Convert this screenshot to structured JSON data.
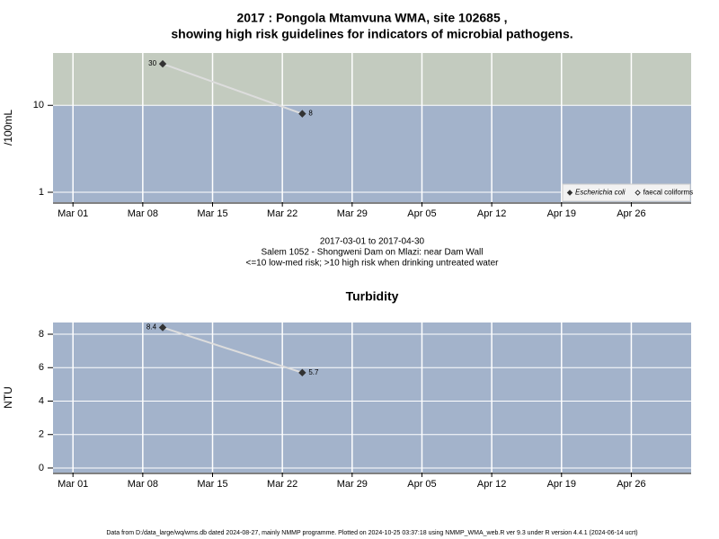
{
  "chart_data": [
    {
      "type": "line",
      "title": "2017 : Pongola Mtamvuna WMA, site 102685 ,",
      "subtitle": "showing high risk guidelines for indicators of microbial pathogens.",
      "y_label": "/100mL",
      "log_scale": true,
      "guideline": 10,
      "above_color": "#c3cbbf",
      "below_color": "#a3b3cb",
      "x": [
        "2017-03-10",
        "2017-03-24"
      ],
      "series": [
        {
          "name": "Escherichia coli",
          "color": "#333333",
          "marker": "filled",
          "values": [
            30,
            8
          ]
        },
        {
          "name": "faecal coliforms",
          "color": "#333333",
          "marker": "open",
          "values": [
            null,
            null
          ]
        }
      ],
      "line_color": "#dddddd",
      "xlim": [
        "2017-02-27",
        "2017-05-02"
      ],
      "xticks": [
        {
          "value": "2017-03-01",
          "label": "Mar 01"
        },
        {
          "value": "2017-03-08",
          "label": "Mar 08"
        },
        {
          "value": "2017-03-15",
          "label": "Mar 15"
        },
        {
          "value": "2017-03-22",
          "label": "Mar 22"
        },
        {
          "value": "2017-03-29",
          "label": "Mar 29"
        },
        {
          "value": "2017-04-05",
          "label": "Apr 05"
        },
        {
          "value": "2017-04-12",
          "label": "Apr 12"
        },
        {
          "value": "2017-04-19",
          "label": "Apr 19"
        },
        {
          "value": "2017-04-26",
          "label": "Apr 26"
        }
      ],
      "ylim": [
        0.77,
        40
      ],
      "yticks": [
        1,
        10
      ],
      "grid": true,
      "legend": "bottom-right",
      "annotations": [
        "2017-03-01 to 2017-04-30",
        "Salem 1052 - Shongweni Dam on Mlazi: near Dam Wall",
        "<=10 low-med risk; >10 high risk when drinking untreated water"
      ]
    },
    {
      "type": "line",
      "title": "Turbidity",
      "y_label": "NTU",
      "log_scale": false,
      "below_color": "#a3b3cb",
      "x": [
        "2017-03-10",
        "2017-03-24"
      ],
      "series": [
        {
          "color": "#333333",
          "marker": "filled",
          "values": [
            8.4,
            5.7
          ]
        }
      ],
      "line_color": "#dddddd",
      "xlim": [
        "2017-02-27",
        "2017-05-02"
      ],
      "xticks": [
        {
          "value": "2017-03-01",
          "label": "Mar 01"
        },
        {
          "value": "2017-03-08",
          "label": "Mar 08"
        },
        {
          "value": "2017-03-15",
          "label": "Mar 15"
        },
        {
          "value": "2017-03-22",
          "label": "Mar 22"
        },
        {
          "value": "2017-03-29",
          "label": "Mar 29"
        },
        {
          "value": "2017-04-05",
          "label": "Apr 05"
        },
        {
          "value": "2017-04-12",
          "label": "Apr 12"
        },
        {
          "value": "2017-04-19",
          "label": "Apr 19"
        },
        {
          "value": "2017-04-26",
          "label": "Apr 26"
        }
      ],
      "ylim": [
        -0.27,
        8.7
      ],
      "yticks": [
        0,
        2,
        4,
        6,
        8
      ],
      "grid": true
    }
  ],
  "footer": "Data from D:/data_large/wq/wms.db dated 2024-08-27, mainly NMMP programme. Plotted on 2024-10-25 03:37:18 using NMMP_WMA_web.R ver 9.3 under R version 4.4.1 (2024-06-14 ucrt)"
}
